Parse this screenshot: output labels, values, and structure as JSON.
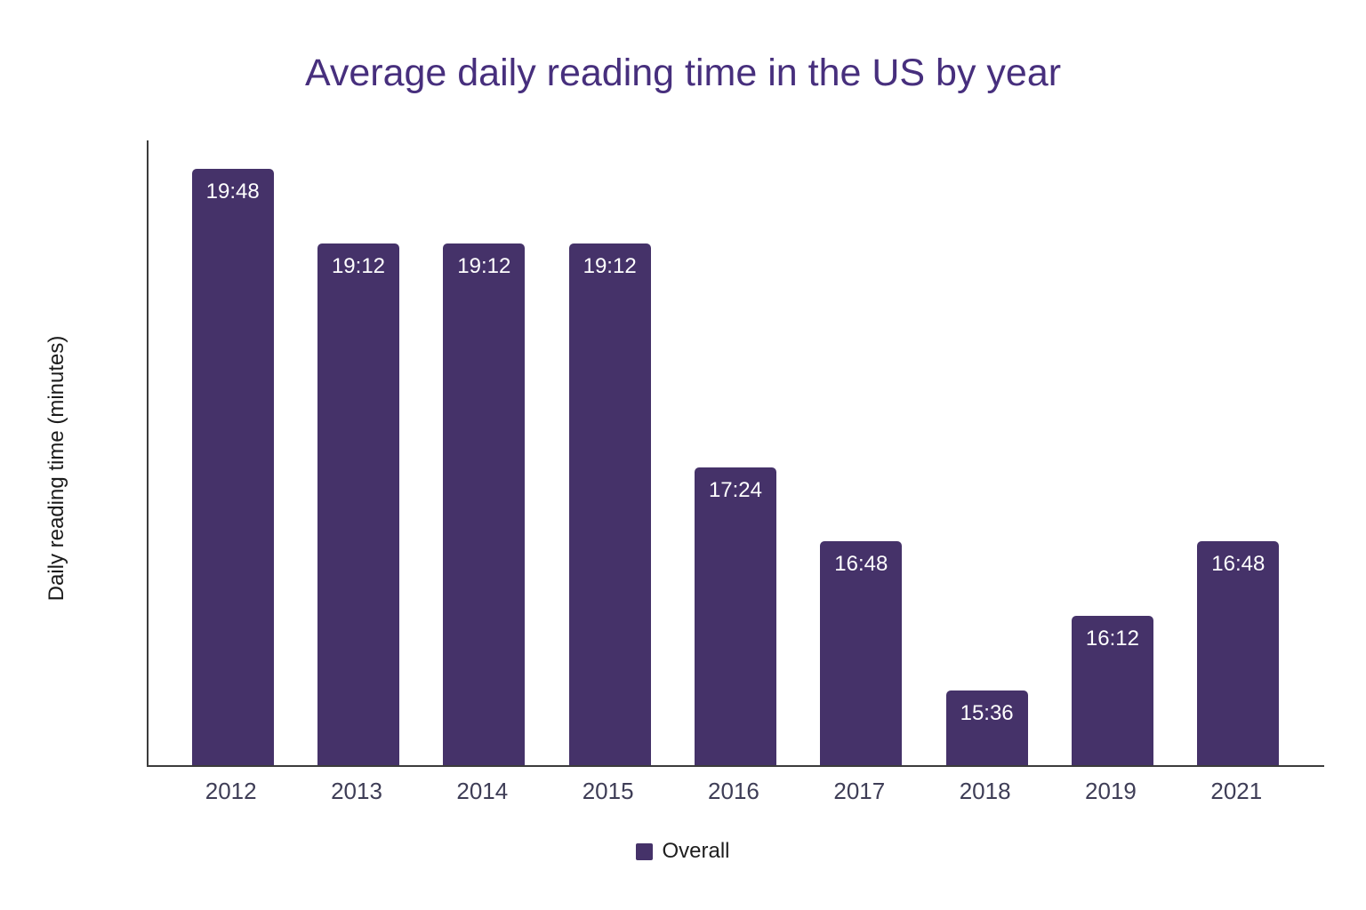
{
  "chart_data": {
    "type": "bar",
    "title": "Average daily reading time in the US by year",
    "xlabel": "",
    "ylabel": "Daily reading time (minutes)",
    "categories": [
      "2012",
      "2013",
      "2014",
      "2015",
      "2016",
      "2017",
      "2018",
      "2019",
      "2021"
    ],
    "series": [
      {
        "name": "Overall",
        "values_minutes": [
          19.8,
          19.2,
          19.2,
          19.2,
          17.4,
          16.8,
          15.6,
          16.2,
          16.8
        ],
        "labels": [
          "19:48",
          "19:12",
          "19:12",
          "19:12",
          "17:24",
          "16:48",
          "15:36",
          "16:12",
          "16:48"
        ]
      }
    ],
    "ylim": [
      15,
      20.03
    ],
    "grid": false,
    "y_tick_labels_visible": false,
    "value_labels_position": "inside-top",
    "legend_position": "bottom",
    "colors": {
      "bar": "#453269",
      "title": "#472F7D",
      "axis": "#3C3C3C",
      "xlabel": "#3E3D56",
      "value_label": "#FFFFFF",
      "legend_text": "#1E1E1E",
      "ylabel_text": "#1B1B1B",
      "background": "#FFFFFF"
    }
  },
  "legend": {
    "items": [
      {
        "label": "Overall",
        "color": "#453269"
      }
    ]
  }
}
